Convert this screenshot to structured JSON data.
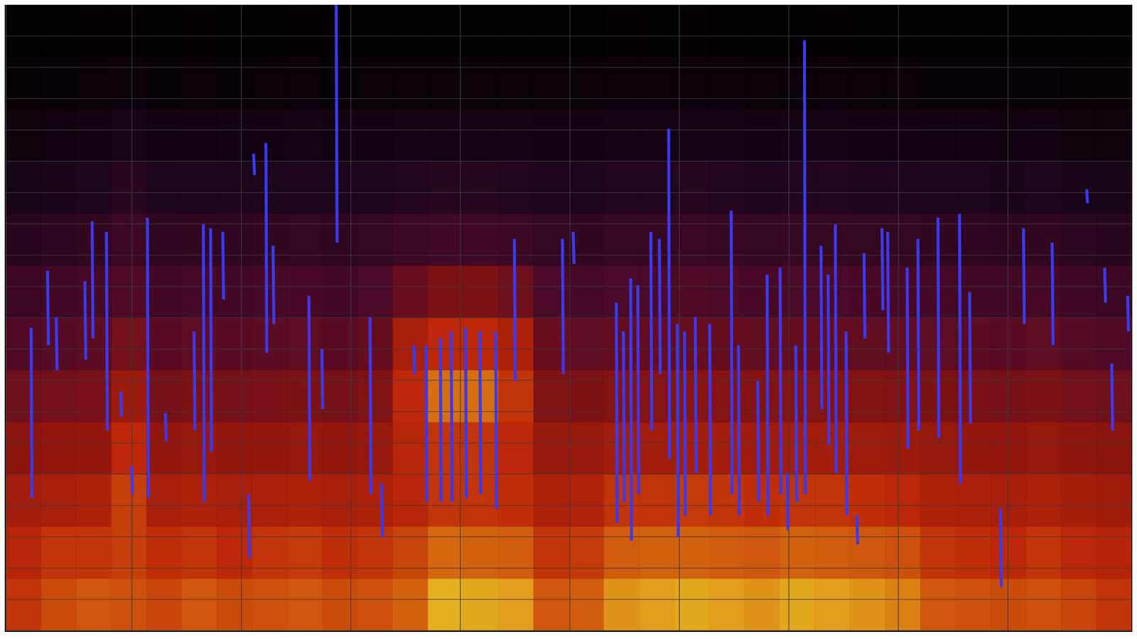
{
  "chart_data": {
    "type": "spectrogram",
    "xlim": [
      0,
      10.28
    ],
    "ylim": [
      0,
      100
    ],
    "xticks": [
      0,
      1.15,
      2.15,
      3.15,
      4.15,
      5.15,
      6.15,
      7.15,
      8.15,
      9.15,
      10.28
    ],
    "yticks": [
      0,
      5,
      10,
      15,
      20,
      25,
      30,
      35,
      40,
      45,
      50,
      55,
      60,
      65,
      70,
      75,
      80,
      85,
      90,
      95,
      100
    ],
    "grid": true,
    "tick_labels": false,
    "zlim": [
      0,
      1
    ],
    "cells": [
      [
        0.8,
        0.84,
        0.86,
        0.85,
        0.83,
        0.86,
        0.84,
        0.85,
        0.86,
        0.84,
        0.85,
        0.88,
        0.97,
        0.96,
        0.95,
        0.86,
        0.87,
        0.94,
        0.95,
        0.96,
        0.95,
        0.94,
        0.96,
        0.95,
        0.94,
        0.92,
        0.86,
        0.85,
        0.84,
        0.85,
        0.83,
        0.8
      ],
      [
        0.76,
        0.8,
        0.8,
        0.82,
        0.79,
        0.8,
        0.78,
        0.8,
        0.81,
        0.79,
        0.8,
        0.83,
        0.89,
        0.88,
        0.87,
        0.8,
        0.81,
        0.87,
        0.88,
        0.88,
        0.87,
        0.86,
        0.88,
        0.87,
        0.86,
        0.85,
        0.8,
        0.79,
        0.78,
        0.8,
        0.77,
        0.75
      ],
      [
        0.68,
        0.7,
        0.72,
        0.82,
        0.7,
        0.72,
        0.7,
        0.71,
        0.72,
        0.7,
        0.72,
        0.76,
        0.8,
        0.8,
        0.79,
        0.72,
        0.73,
        0.8,
        0.8,
        0.81,
        0.8,
        0.79,
        0.8,
        0.8,
        0.79,
        0.77,
        0.72,
        0.71,
        0.7,
        0.72,
        0.69,
        0.67
      ],
      [
        0.6,
        0.62,
        0.63,
        0.78,
        0.62,
        0.64,
        0.62,
        0.63,
        0.64,
        0.62,
        0.64,
        0.76,
        0.8,
        0.8,
        0.77,
        0.64,
        0.64,
        0.68,
        0.68,
        0.69,
        0.68,
        0.67,
        0.68,
        0.68,
        0.67,
        0.66,
        0.64,
        0.63,
        0.62,
        0.64,
        0.61,
        0.6
      ],
      [
        0.5,
        0.52,
        0.54,
        0.66,
        0.53,
        0.55,
        0.53,
        0.54,
        0.55,
        0.53,
        0.56,
        0.78,
        0.9,
        0.9,
        0.8,
        0.56,
        0.55,
        0.58,
        0.58,
        0.59,
        0.58,
        0.57,
        0.58,
        0.58,
        0.57,
        0.56,
        0.55,
        0.54,
        0.53,
        0.55,
        0.52,
        0.5
      ],
      [
        0.4,
        0.42,
        0.44,
        0.52,
        0.43,
        0.45,
        0.43,
        0.44,
        0.45,
        0.43,
        0.47,
        0.7,
        0.78,
        0.78,
        0.72,
        0.48,
        0.45,
        0.47,
        0.47,
        0.48,
        0.47,
        0.46,
        0.47,
        0.47,
        0.46,
        0.46,
        0.45,
        0.44,
        0.43,
        0.45,
        0.42,
        0.4
      ],
      [
        0.32,
        0.34,
        0.36,
        0.4,
        0.35,
        0.36,
        0.35,
        0.36,
        0.37,
        0.35,
        0.38,
        0.48,
        0.55,
        0.55,
        0.5,
        0.38,
        0.36,
        0.38,
        0.38,
        0.39,
        0.38,
        0.37,
        0.38,
        0.38,
        0.37,
        0.37,
        0.36,
        0.35,
        0.34,
        0.36,
        0.33,
        0.32
      ],
      [
        0.24,
        0.26,
        0.28,
        0.32,
        0.27,
        0.28,
        0.27,
        0.28,
        0.29,
        0.27,
        0.29,
        0.32,
        0.34,
        0.34,
        0.32,
        0.29,
        0.28,
        0.3,
        0.3,
        0.31,
        0.3,
        0.29,
        0.3,
        0.3,
        0.29,
        0.29,
        0.28,
        0.27,
        0.26,
        0.28,
        0.25,
        0.24
      ],
      [
        0.16,
        0.18,
        0.2,
        0.24,
        0.19,
        0.2,
        0.19,
        0.2,
        0.21,
        0.19,
        0.2,
        0.22,
        0.23,
        0.23,
        0.22,
        0.21,
        0.2,
        0.22,
        0.22,
        0.23,
        0.22,
        0.21,
        0.22,
        0.22,
        0.21,
        0.21,
        0.2,
        0.19,
        0.18,
        0.2,
        0.17,
        0.16
      ],
      [
        0.1,
        0.11,
        0.13,
        0.16,
        0.12,
        0.13,
        0.12,
        0.13,
        0.14,
        0.12,
        0.13,
        0.14,
        0.14,
        0.14,
        0.14,
        0.13,
        0.13,
        0.14,
        0.14,
        0.15,
        0.14,
        0.13,
        0.14,
        0.14,
        0.13,
        0.13,
        0.12,
        0.12,
        0.11,
        0.12,
        0.1,
        0.1
      ],
      [
        0.05,
        0.06,
        0.07,
        0.09,
        0.06,
        0.07,
        0.06,
        0.07,
        0.08,
        0.06,
        0.07,
        0.07,
        0.07,
        0.07,
        0.07,
        0.07,
        0.07,
        0.08,
        0.08,
        0.08,
        0.08,
        0.07,
        0.07,
        0.08,
        0.07,
        0.07,
        0.06,
        0.06,
        0.06,
        0.06,
        0.05,
        0.05
      ],
      [
        0.02,
        0.02,
        0.03,
        0.03,
        0.02,
        0.03,
        0.02,
        0.02,
        0.03,
        0.02,
        0.02,
        0.02,
        0.02,
        0.02,
        0.02,
        0.02,
        0.02,
        0.03,
        0.02,
        0.03,
        0.02,
        0.02,
        0.02,
        0.03,
        0.02,
        0.02,
        0.02,
        0.02,
        0.02,
        0.02,
        0.02,
        0.02
      ]
    ],
    "series": [
      {
        "type": "line",
        "color": "#3a3af0",
        "x": [
          0.23,
          0.238,
          0.238,
          0.38,
          0.388,
          0.388,
          0.459,
          0.467,
          0.467,
          0.721,
          0.729,
          0.729,
          0.787,
          0.795,
          0.795,
          0.918,
          0.926,
          0.926,
          1.049,
          1.057,
          1.057,
          1.148,
          1.156,
          1.156,
          1.292,
          1.3,
          1.3,
          1.456,
          1.464,
          1.464,
          1.718,
          1.726,
          1.726,
          1.803,
          1.811,
          1.811,
          1.869,
          1.877,
          1.877,
          1.98,
          1.988,
          1.988,
          2.216,
          2.224,
          2.224,
          2.262,
          2.27,
          2.27,
          2.374,
          2.382,
          2.382,
          2.439,
          2.447,
          2.447,
          2.767,
          2.775,
          2.775,
          2.885,
          2.893,
          2.893,
          3.016,
          3.024,
          3.024,
          3.325,
          3.333,
          3.333,
          3.43,
          3.438,
          3.438,
          3.725,
          3.733,
          3.733,
          3.836,
          3.844,
          3.844,
          3.967,
          3.975,
          3.975,
          4.066,
          4.074,
          4.074,
          4.197,
          4.205,
          4.205,
          4.328,
          4.336,
          4.336,
          4.472,
          4.48,
          4.48,
          4.643,
          4.651,
          4.651,
          5.082,
          5.09,
          5.09,
          5.18,
          5.188,
          5.188,
          5.574,
          5.582,
          5.582,
          5.639,
          5.647,
          5.647,
          5.705,
          5.713,
          5.713,
          5.77,
          5.778,
          5.778,
          5.889,
          5.897,
          5.897,
          5.967,
          5.975,
          5.975,
          6.052,
          6.06,
          6.06,
          6.131,
          6.139,
          6.139,
          6.197,
          6.205,
          6.205,
          6.295,
          6.303,
          6.303,
          6.426,
          6.434,
          6.434,
          6.623,
          6.631,
          6.631,
          6.689,
          6.697,
          6.697,
          6.866,
          6.874,
          6.874,
          6.951,
          6.959,
          6.959,
          7.069,
          7.077,
          7.077,
          7.134,
          7.142,
          7.142,
          7.213,
          7.221,
          7.221,
          7.292,
          7.3,
          7.3,
          7.443,
          7.451,
          7.451,
          7.508,
          7.516,
          7.516,
          7.574,
          7.582,
          7.582,
          7.672,
          7.68,
          7.68,
          7.77,
          7.778,
          7.778,
          7.836,
          7.844,
          7.844,
          8.0,
          8.008,
          8.008,
          8.052,
          8.06,
          8.06,
          8.23,
          8.238,
          8.238,
          8.328,
          8.336,
          8.336,
          8.511,
          8.519,
          8.519,
          8.708,
          8.716,
          8.716,
          8.8,
          8.808,
          8.808,
          9.082,
          9.09,
          9.09,
          9.292,
          9.3,
          9.3,
          9.554,
          9.562,
          9.562,
          9.869,
          9.877,
          9.877,
          10.033,
          10.041,
          10.041,
          10.098,
          10.106,
          10.106,
          10.243,
          10.251,
          10.251
        ],
        "values": [
          48.4,
          21.2,
          null,
          57.5,
          45.6,
          null,
          50.1,
          41.6,
          null,
          55.8,
          43.3,
          null,
          65.4,
          46.7,
          null,
          63.7,
          32.0,
          null,
          38.2,
          34.2,
          null,
          26.3,
          21.8,
          null,
          66.0,
          21.2,
          null,
          34.8,
          30.3,
          null,
          47.8,
          32.0,
          null,
          64.9,
          20.6,
          null,
          64.3,
          28.6,
          null,
          63.7,
          52.9,
          null,
          21.8,
          11.6,
          null,
          76.2,
          72.8,
          null,
          77.9,
          44.4,
          null,
          61.5,
          49.0,
          null,
          53.5,
          24.0,
          null,
          45.0,
          35.4,
          null,
          100.0,
          62.0,
          null,
          50.1,
          21.8,
          null,
          23.5,
          15.0,
          null,
          45.6,
          41.0,
          null,
          45.6,
          20.6,
          null,
          46.7,
          20.6,
          null,
          47.8,
          20.6,
          null,
          48.4,
          21.2,
          null,
          47.8,
          21.8,
          null,
          47.8,
          19.5,
          null,
          62.6,
          39.9,
          null,
          62.6,
          41.0,
          null,
          63.7,
          58.6,
          null,
          52.4,
          17.2,
          null,
          47.8,
          20.6,
          null,
          56.3,
          14.4,
          null,
          55.2,
          21.8,
          null,
          63.7,
          32.0,
          null,
          62.6,
          41.0,
          null,
          80.2,
          27.4,
          null,
          49.0,
          15.0,
          null,
          47.8,
          18.4,
          null,
          50.1,
          25.2,
          null,
          49.0,
          18.4,
          null,
          67.1,
          21.8,
          null,
          45.6,
          18.4,
          null,
          39.9,
          20.6,
          null,
          56.9,
          18.4,
          null,
          58.0,
          21.8,
          null,
          25.2,
          16.1,
          null,
          45.6,
          20.6,
          null,
          94.3,
          21.8,
          null,
          61.5,
          35.4,
          null,
          56.9,
          29.7,
          null,
          64.9,
          25.2,
          null,
          47.8,
          18.4,
          null,
          18.4,
          13.8,
          null,
          60.3,
          46.7,
          null,
          64.3,
          51.2,
          null,
          63.7,
          44.4,
          null,
          58.0,
          29.1,
          null,
          62.6,
          32.0,
          null,
          66.0,
          30.8,
          null,
          66.6,
          23.5,
          null,
          54.1,
          33.1,
          null,
          19.5,
          7.0,
          null,
          64.3,
          49.0,
          null,
          62.0,
          45.6,
          null,
          70.5,
          68.3,
          null,
          58.0,
          52.4,
          null,
          42.7,
          32.0,
          null,
          53.5,
          47.8,
          null
        ]
      }
    ]
  }
}
